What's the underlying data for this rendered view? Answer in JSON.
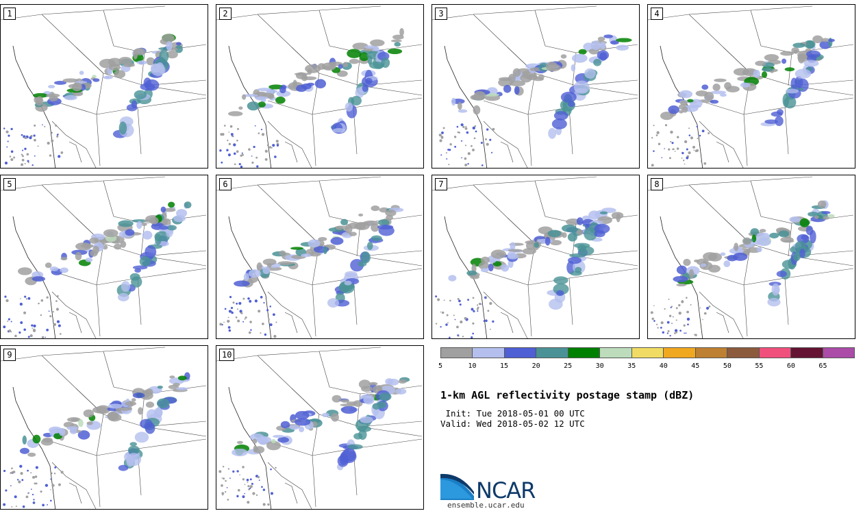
{
  "panels": [
    {
      "label": "1"
    },
    {
      "label": "2"
    },
    {
      "label": "3"
    },
    {
      "label": "4"
    },
    {
      "label": "5"
    },
    {
      "label": "6"
    },
    {
      "label": "7"
    },
    {
      "label": "8"
    },
    {
      "label": "9"
    },
    {
      "label": "10"
    }
  ],
  "colorbar": {
    "colors": [
      "#a0a0a0",
      "#b4bfee",
      "#4f5fd4",
      "#4a9296",
      "#008000",
      "#bcdcbc",
      "#f0dc64",
      "#f0a820",
      "#be8032",
      "#8c5a3c",
      "#f0507c",
      "#641432",
      "#aa4ca8"
    ],
    "ticks": [
      "5",
      "10",
      "15",
      "20",
      "25",
      "30",
      "35",
      "40",
      "45",
      "50",
      "55",
      "60",
      "65"
    ]
  },
  "title": "1-km AGL reflectivity postage stamp (dBZ)",
  "init": " Init: Tue 2018-05-01 00 UTC",
  "valid": "Valid: Wed 2018-05-02 12 UTC",
  "logo": {
    "text": "NCAR",
    "site": "ensemble.ucar.edu"
  }
}
